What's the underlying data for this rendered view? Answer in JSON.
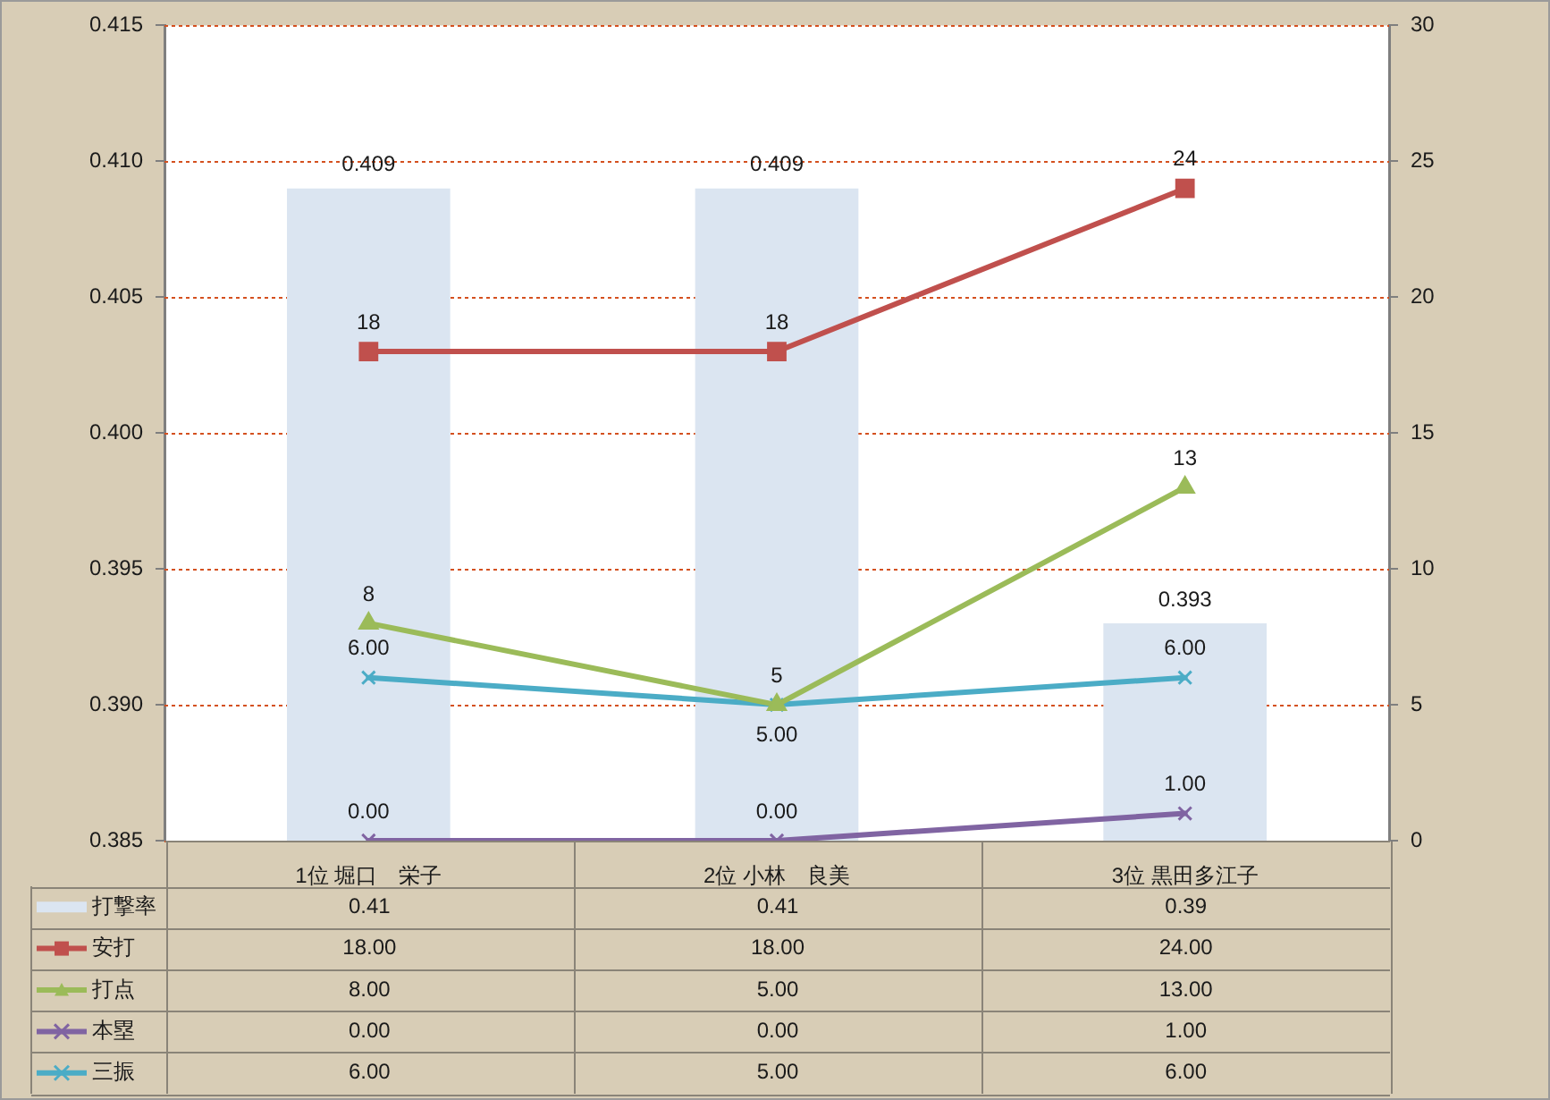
{
  "chart_data": {
    "type": "bar",
    "categories": [
      "1位 堀口　栄子",
      "2位 小林　良美",
      "3位 黒田多江子"
    ],
    "series": [
      {
        "name": "打撃率",
        "color": "#dbe5f1",
        "values": [
          0.409,
          0.409,
          0.393
        ],
        "value_labels": [
          "0.409",
          "0.409",
          "0.393"
        ]
      },
      {
        "name": "安打",
        "type": "line",
        "color": "#c0504d",
        "values": [
          18,
          18,
          24
        ],
        "axis": "y2",
        "marker": "square",
        "value_labels": [
          "18",
          "18",
          "24"
        ]
      },
      {
        "name": "打点",
        "type": "line",
        "color": "#9bbb59",
        "values": [
          8,
          5,
          13
        ],
        "axis": "y2",
        "marker": "triangle",
        "value_labels": [
          "8",
          "5",
          "13"
        ]
      },
      {
        "name": "本塁",
        "type": "line",
        "color": "#8064a2",
        "values": [
          0,
          0,
          1
        ],
        "axis": "y2",
        "marker": "cross",
        "value_labels": [
          "0.00",
          "0.00",
          "1.00"
        ]
      },
      {
        "name": "三振",
        "type": "line",
        "color": "#4bacc6",
        "values": [
          6,
          5,
          6
        ],
        "axis": "y2",
        "marker": "cross",
        "value_labels": [
          "6.00",
          "5.00",
          "6.00"
        ]
      }
    ],
    "ylim": [
      0.385,
      0.415
    ],
    "yticks": [
      0.385,
      {
        "value": 0.39,
        "label": "0.390"
      },
      0.395,
      {
        "value": 0.4,
        "label": "0.400"
      },
      0.405,
      {
        "value": 0.41,
        "label": "0.410"
      },
      0.415
    ],
    "y2lim": [
      0,
      30
    ],
    "y2ticks": [
      0,
      5,
      10,
      15,
      20,
      25,
      30
    ],
    "grid": "y",
    "legend": "bottom left",
    "annotations": [
      "0.41",
      "0.41",
      "0.39",
      "18.00",
      "18.00",
      "24.00",
      "8.00",
      "5.00",
      "13.00",
      "0.00",
      "0.00",
      "1.00",
      "6.00",
      "5.00",
      "6.00"
    ]
  }
}
